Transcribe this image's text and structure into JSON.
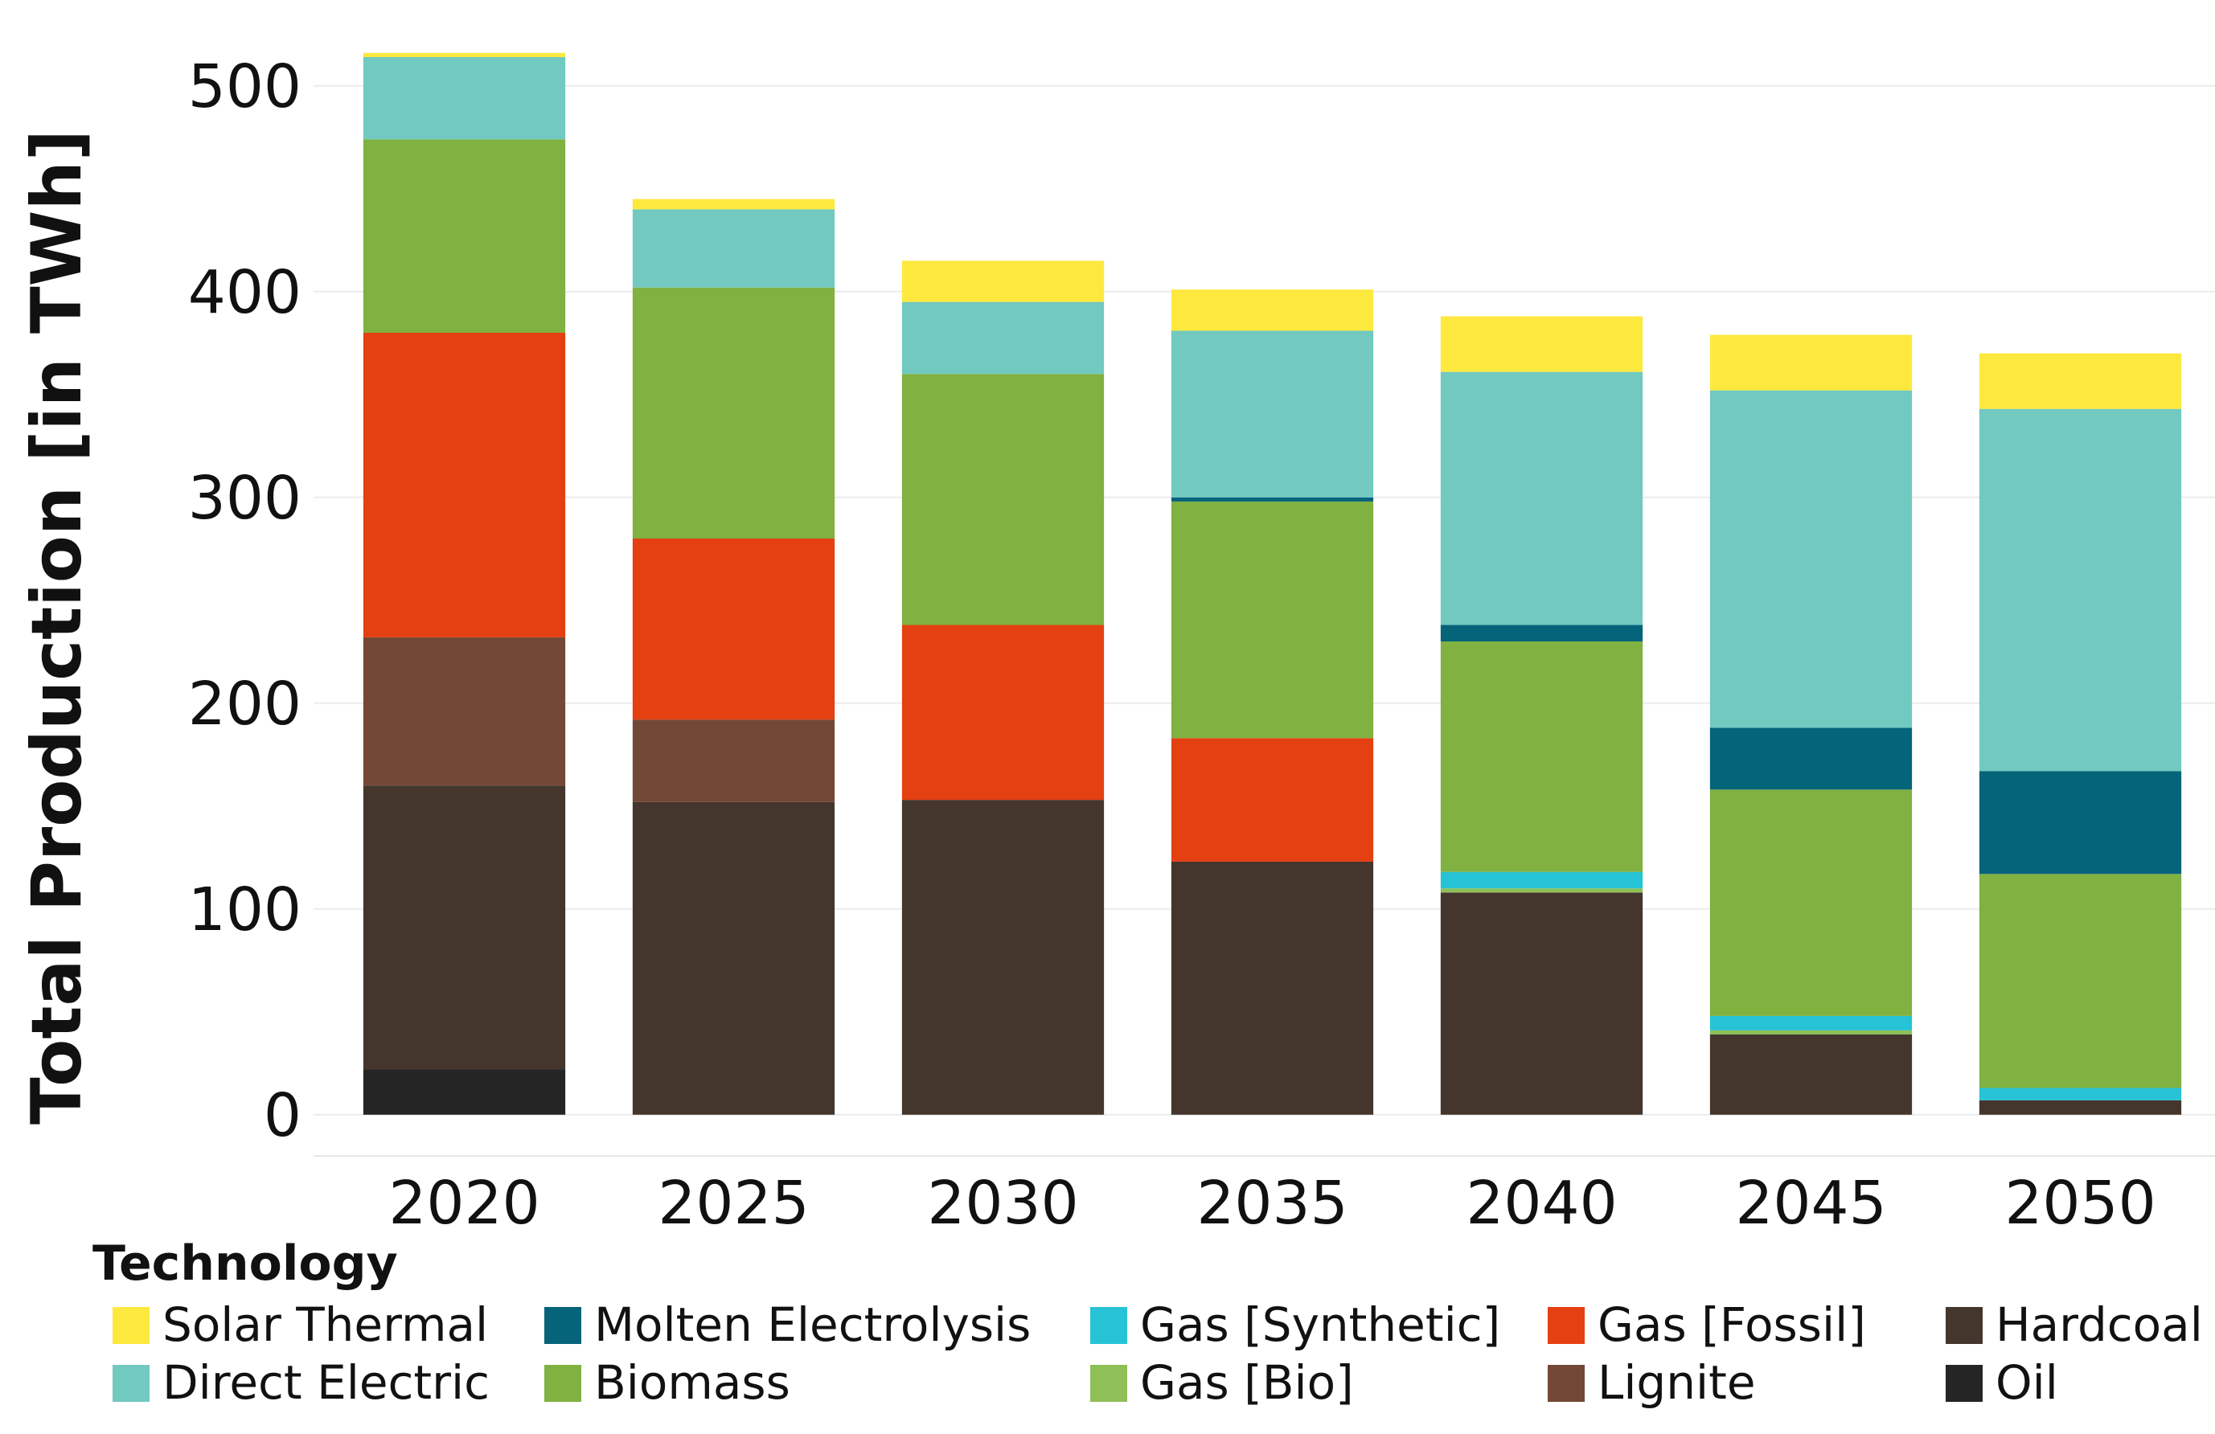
{
  "chart_data": {
    "type": "bar",
    "stacked": true,
    "title": "",
    "xlabel": "",
    "ylabel": "Total Production [in TWh]",
    "ylim": [
      -20,
      530
    ],
    "yticks": [
      0,
      100,
      200,
      300,
      400,
      500
    ],
    "categories": [
      "2020",
      "2025",
      "2030",
      "2035",
      "2040",
      "2045",
      "2050"
    ],
    "grid": true,
    "legend_title": "Technology",
    "legend_position": "bottom",
    "series": [
      {
        "name": "Oil",
        "color": "#252525",
        "values": [
          22,
          0,
          0,
          0,
          0,
          0,
          0
        ]
      },
      {
        "name": "Hardcoal",
        "color": "#44362c",
        "values": [
          138,
          152,
          153,
          123,
          108,
          39,
          7
        ]
      },
      {
        "name": "Lignite",
        "color": "#734836",
        "values": [
          72,
          40,
          0,
          0,
          0,
          0,
          0
        ]
      },
      {
        "name": "Gas [Fossil]",
        "color": "#e44012",
        "values": [
          148,
          88,
          85,
          60,
          0,
          0,
          0
        ]
      },
      {
        "name": "Gas [Bio]",
        "color": "#8fbf57",
        "values": [
          0,
          0,
          0,
          0,
          2,
          2,
          0
        ]
      },
      {
        "name": "Gas [Synthetic]",
        "color": "#26c3d6",
        "values": [
          0,
          0,
          0,
          0,
          8,
          7,
          6
        ]
      },
      {
        "name": "Biomass",
        "color": "#80b141",
        "values": [
          94,
          122,
          122,
          115,
          112,
          110,
          104
        ]
      },
      {
        "name": "Molten Electrolysis",
        "color": "#05637a",
        "values": [
          0,
          0,
          0,
          2,
          8,
          30,
          50
        ]
      },
      {
        "name": "Direct Electric",
        "color": "#71c9c0",
        "values": [
          40,
          38,
          35,
          81,
          123,
          164,
          176
        ]
      },
      {
        "name": "Solar Thermal",
        "color": "#fde83e",
        "values": [
          2,
          5,
          20,
          20,
          27,
          27,
          27
        ]
      }
    ]
  },
  "legend": {
    "title": "Technology",
    "items": [
      {
        "label": "Solar Thermal",
        "color": "#fde83e"
      },
      {
        "label": "Direct Electric",
        "color": "#71c9c0"
      },
      {
        "label": "Molten Electrolysis",
        "color": "#05637a"
      },
      {
        "label": "Biomass",
        "color": "#80b141"
      },
      {
        "label": "Gas [Synthetic]",
        "color": "#26c3d6"
      },
      {
        "label": "Gas [Bio]",
        "color": "#8fbf57"
      },
      {
        "label": "Gas [Fossil]",
        "color": "#e44012"
      },
      {
        "label": "Lignite",
        "color": "#734836"
      },
      {
        "label": "Hardcoal",
        "color": "#44362c"
      },
      {
        "label": "Oil",
        "color": "#252525"
      }
    ]
  }
}
